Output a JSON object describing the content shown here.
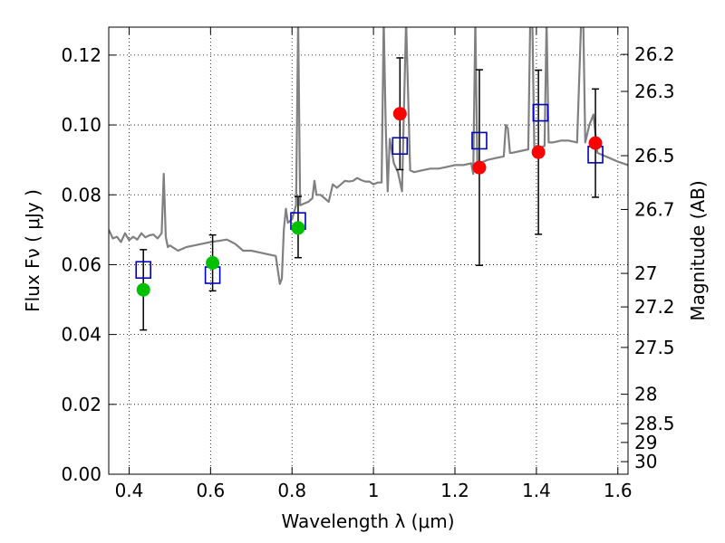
{
  "chart_data": {
    "type": "scatter",
    "title": "",
    "xlabel": "Wavelength  λ (μm)",
    "ylabel": "Flux  Fν  ( μJy )",
    "y2label": "Magnitude (AB)",
    "xlim": [
      0.35,
      1.625
    ],
    "ylim": [
      0.0,
      0.128
    ],
    "grid": true,
    "x_ticks": [
      0.4,
      0.6,
      0.8,
      1.0,
      1.2,
      1.4,
      1.6
    ],
    "x_tick_labels": [
      "0.4",
      "0.6",
      "0.8",
      "1",
      "1.2",
      "1.4",
      "1.6"
    ],
    "y_ticks": [
      0.0,
      0.02,
      0.04,
      0.06,
      0.08,
      0.1,
      0.12
    ],
    "y_tick_labels": [
      "0.00",
      "0.02",
      "0.04",
      "0.06",
      "0.08",
      "0.10",
      "0.12"
    ],
    "y2_ticks": [
      {
        "label": "26.2",
        "flux": 0.1202
      },
      {
        "label": "26.3",
        "flux": 0.1096
      },
      {
        "label": "26.5",
        "flux": 0.0912
      },
      {
        "label": "26.7",
        "flux": 0.0758
      },
      {
        "label": "27",
        "flux": 0.0575
      },
      {
        "label": "27.2",
        "flux": 0.0479
      },
      {
        "label": "27.5",
        "flux": 0.0363
      },
      {
        "label": "28",
        "flux": 0.0229
      },
      {
        "label": "28.5",
        "flux": 0.0145
      },
      {
        "label": "29",
        "flux": 0.0091
      },
      {
        "label": "30",
        "flux": 0.0036
      }
    ],
    "series": [
      {
        "type": "line",
        "color": "#808080",
        "x": [
          0.35,
          0.36,
          0.37,
          0.38,
          0.39,
          0.4,
          0.41,
          0.42,
          0.43,
          0.44,
          0.45,
          0.46,
          0.47,
          0.48,
          0.485,
          0.49,
          0.495,
          0.5,
          0.52,
          0.54,
          0.56,
          0.58,
          0.6,
          0.62,
          0.64,
          0.66,
          0.68,
          0.7,
          0.72,
          0.74,
          0.76,
          0.77,
          0.775,
          0.78,
          0.785,
          0.79,
          0.8,
          0.81,
          0.815,
          0.82,
          0.83,
          0.84,
          0.85,
          0.855,
          0.86,
          0.87,
          0.88,
          0.89,
          0.9,
          0.91,
          0.92,
          0.93,
          0.94,
          0.95,
          0.96,
          0.97,
          0.98,
          0.99,
          1.0,
          1.01,
          1.02,
          1.025,
          1.03,
          1.035,
          1.04,
          1.05,
          1.06,
          1.07,
          1.08,
          1.09,
          1.1,
          1.12,
          1.14,
          1.16,
          1.18,
          1.2,
          1.22,
          1.24,
          1.245,
          1.25,
          1.255,
          1.26,
          1.28,
          1.3,
          1.32,
          1.325,
          1.33,
          1.335,
          1.34,
          1.36,
          1.38,
          1.385,
          1.39,
          1.395,
          1.4,
          1.41,
          1.42,
          1.425,
          1.43,
          1.44,
          1.46,
          1.48,
          1.5,
          1.51,
          1.515,
          1.52,
          1.53,
          1.54,
          1.55,
          1.56,
          1.58,
          1.6,
          1.625
        ],
        "y": [
          0.07,
          0.0675,
          0.068,
          0.0665,
          0.069,
          0.067,
          0.068,
          0.0672,
          0.069,
          0.0678,
          0.0684,
          0.0686,
          0.0675,
          0.069,
          0.086,
          0.068,
          0.065,
          0.0655,
          0.064,
          0.065,
          0.0655,
          0.066,
          0.0665,
          0.0668,
          0.0672,
          0.066,
          0.064,
          0.064,
          0.0635,
          0.063,
          0.0625,
          0.0545,
          0.056,
          0.07,
          0.076,
          0.072,
          0.073,
          0.077,
          0.13,
          0.077,
          0.0775,
          0.078,
          0.079,
          0.084,
          0.08,
          0.08,
          0.079,
          0.078,
          0.083,
          0.082,
          0.083,
          0.084,
          0.0838,
          0.084,
          0.0848,
          0.0842,
          0.0838,
          0.0838,
          0.083,
          0.0835,
          0.0835,
          0.13,
          0.1,
          0.081,
          0.096,
          0.089,
          0.0865,
          0.081,
          0.13,
          0.087,
          0.0865,
          0.087,
          0.0875,
          0.0875,
          0.088,
          0.0885,
          0.0885,
          0.089,
          0.086,
          0.13,
          0.089,
          0.089,
          0.09,
          0.0905,
          0.091,
          0.1,
          0.099,
          0.092,
          0.092,
          0.0925,
          0.093,
          0.13,
          0.13,
          0.093,
          0.094,
          0.0935,
          0.094,
          0.13,
          0.095,
          0.095,
          0.0955,
          0.0955,
          0.095,
          0.13,
          0.13,
          0.095,
          0.1,
          0.103,
          0.092,
          0.0915,
          0.0905,
          0.0895,
          0.0885
        ]
      },
      {
        "type": "points",
        "marker": "open-square",
        "color": "#0000bb",
        "x": [
          0.435,
          0.605,
          0.815,
          1.065,
          1.26,
          1.41,
          1.545
        ],
        "y": [
          0.0585,
          0.057,
          0.0725,
          0.094,
          0.0955,
          0.1035,
          0.0915
        ]
      },
      {
        "type": "points",
        "marker": "filled-circle",
        "color": "#00c000",
        "x": [
          0.435,
          0.605,
          0.815
        ],
        "y": [
          0.0528,
          0.0605,
          0.0705
        ],
        "err_low": [
          0.0115,
          0.008,
          0.0085
        ],
        "err_high": [
          0.0115,
          0.008,
          0.009
        ]
      },
      {
        "type": "points",
        "marker": "filled-circle",
        "color": "#ff0000",
        "x": [
          1.065,
          1.26,
          1.405,
          1.545
        ],
        "y": [
          0.1032,
          0.0878,
          0.0922,
          0.0948
        ],
        "err_low": [
          0.016,
          0.028,
          0.0235,
          0.0155
        ],
        "err_high": [
          0.016,
          0.028,
          0.0235,
          0.0155
        ]
      }
    ]
  }
}
